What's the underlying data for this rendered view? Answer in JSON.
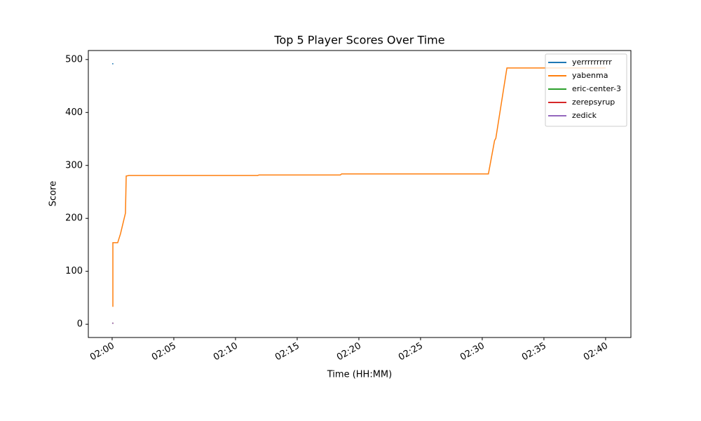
{
  "chart_data": {
    "type": "line",
    "title": "Top 5 Player Scores Over Time",
    "x_label": "Time (HH:MM)",
    "y_label": "Score",
    "series": [
      {
        "name": "yerrrrrrrrrr",
        "color": "#1f77b4",
        "x": [
          0.0,
          0.1
        ],
        "values": [
          492,
          492
        ]
      },
      {
        "name": "yabenma",
        "color": "#ff7f0e",
        "x": [
          0.06,
          0.06,
          0.45,
          0.68,
          1.08,
          1.14,
          1.36,
          11.8,
          11.9,
          18.5,
          18.6,
          19.8,
          30.5,
          31.0,
          31.1,
          32.0,
          40.0
        ],
        "values": [
          33,
          154,
          154,
          171,
          210,
          280,
          281,
          281,
          282,
          282,
          284,
          284,
          284,
          347,
          351,
          484,
          484
        ]
      },
      {
        "name": "eric-center-3",
        "color": "#2ca02c",
        "x": [
          0.0,
          0.1
        ],
        "values": [
          2,
          2
        ]
      },
      {
        "name": "zerepsyrup",
        "color": "#d62728",
        "x": [
          0.0,
          0.1
        ],
        "values": [
          2,
          2
        ]
      },
      {
        "name": "zedick",
        "color": "#9467bd",
        "x": [
          0.0,
          0.1
        ],
        "values": [
          2,
          2
        ]
      }
    ],
    "xlim": [
      -1.93,
      42.05
    ],
    "ylim": [
      -25,
      517
    ],
    "xticks": [
      {
        "value": 0,
        "label": "02:00"
      },
      {
        "value": 5,
        "label": "02:05"
      },
      {
        "value": 10,
        "label": "02:10"
      },
      {
        "value": 15,
        "label": "02:15"
      },
      {
        "value": 20,
        "label": "02:20"
      },
      {
        "value": 25,
        "label": "02:25"
      },
      {
        "value": 30,
        "label": "02:30"
      },
      {
        "value": 35,
        "label": "02:35"
      },
      {
        "value": 40,
        "label": "02:40"
      }
    ],
    "yticks": [
      0,
      100,
      200,
      300,
      400,
      500
    ],
    "legend": "upper right",
    "grid": false
  }
}
